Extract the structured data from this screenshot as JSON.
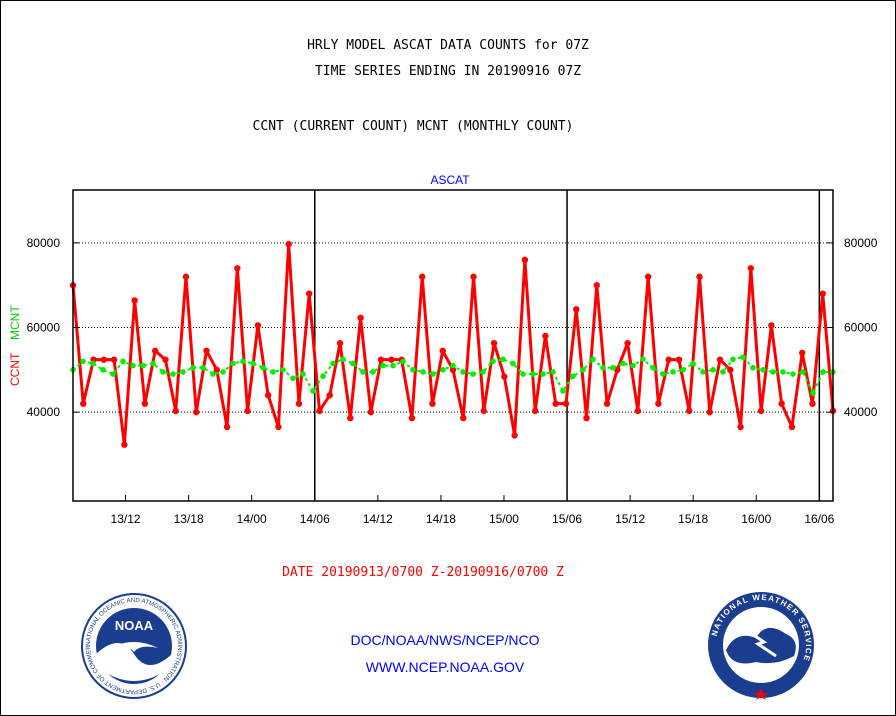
{
  "header": {
    "title_line1": "HRLY MODEL ASCAT DATA COUNTS for 07Z",
    "title_line2": "TIME SERIES ENDING IN 20190916 07Z",
    "title_line3": "CCNT (CURRENT COUNT) MCNT (MONTHLY COUNT)"
  },
  "footer": {
    "date_range": "DATE 20190913/0700 Z-20190916/0700 Z",
    "credit_line1": "DOC/NOAA/NWS/NCEP/NCO",
    "credit_line2": "WWW.NCEP.NOAA.GOV"
  },
  "logos": {
    "left": {
      "icon": "noaa-logo-icon",
      "label": "NOAA",
      "ring_text": "NATIONAL OCEANIC AND ATMOSPHERIC ADMINISTRATION · U.S. DEPARTMENT OF COMMERCE"
    },
    "right": {
      "icon": "nws-logo-icon",
      "ring_text": "NATIONAL WEATHER SERVICE"
    }
  },
  "chart_data": {
    "type": "line",
    "title": "ASCAT",
    "ylabel_left_red": "CCNT",
    "ylabel_left_green": "MCNT",
    "x_tick_labels": [
      "13/12",
      "13/18",
      "14/00",
      "14/06",
      "14/12",
      "14/18",
      "15/00",
      "15/06",
      "15/12",
      "15/18",
      "16/00",
      "16/06"
    ],
    "x_tick_hours": [
      5,
      11,
      17,
      23,
      29,
      35,
      41,
      47,
      53,
      59,
      65,
      71
    ],
    "x_range_hours": [
      0,
      72.3
    ],
    "y_ticks": [
      40000,
      60000,
      80000
    ],
    "ylim": [
      19000,
      92500
    ],
    "day_boundary_hours": [
      23,
      47,
      71
    ],
    "grid": "horizontal-dashed",
    "colors": {
      "CCNT": "#ff0000",
      "MCNT": "#00ee00",
      "title": "#0000ff"
    },
    "series": [
      {
        "name": "CCNT",
        "values": [
          70000,
          42000,
          52400,
          52400,
          52400,
          32300,
          66400,
          42000,
          54500,
          52400,
          40300,
          72000,
          40000,
          54500,
          50000,
          36500,
          74000,
          40300,
          60500,
          44000,
          36500,
          79700,
          42000,
          68000,
          40300,
          44000,
          56300,
          38600,
          62300,
          40000,
          52400,
          52400,
          52400,
          38600,
          72000,
          42000,
          54500,
          50000,
          38600,
          72000,
          40300,
          56300,
          48400,
          34500,
          76000,
          40300,
          58000,
          42000,
          42000,
          64300,
          38600,
          70000,
          42000,
          50000,
          56300,
          40300,
          72000,
          42000,
          52400,
          52400,
          40300,
          72000,
          40000,
          52400,
          50000,
          36500,
          74000,
          40300,
          60500,
          42000,
          36500,
          54000,
          42000,
          68000,
          40300
        ]
      },
      {
        "name": "MCNT",
        "values": [
          50000,
          52000,
          51500,
          50000,
          49000,
          52000,
          51000,
          51000,
          51500,
          49500,
          49000,
          49500,
          50500,
          50500,
          49000,
          49500,
          51500,
          52000,
          51500,
          50500,
          49500,
          50000,
          48000,
          49000,
          45000,
          48500,
          51500,
          52500,
          51500,
          49500,
          49500,
          51000,
          51000,
          52000,
          50000,
          49500,
          49000,
          50000,
          51000,
          49500,
          49000,
          49500,
          52000,
          52500,
          51500,
          49000,
          49000,
          49000,
          49500,
          45000,
          48500,
          50000,
          52500,
          50500,
          50500,
          51500,
          51000,
          52500,
          50500,
          49000,
          49500,
          50000,
          51500,
          49500,
          50000,
          49500,
          52500,
          53000,
          50500,
          50000,
          49500,
          49500,
          49000,
          49500,
          44500,
          49500,
          49500
        ]
      }
    ]
  }
}
